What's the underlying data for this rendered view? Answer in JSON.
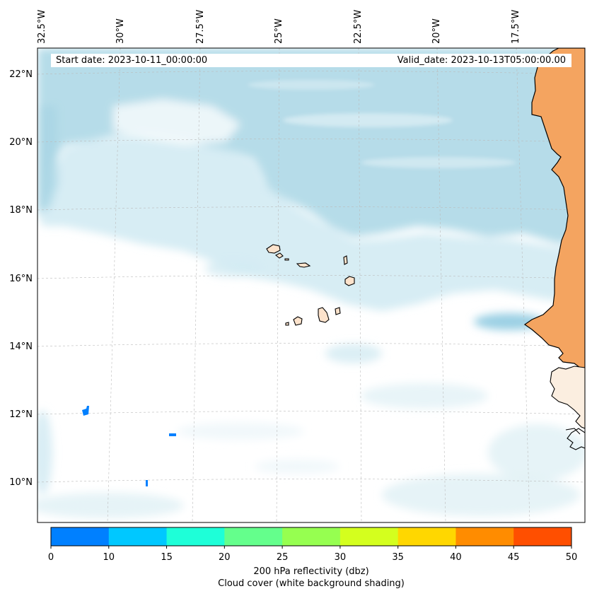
{
  "map": {
    "lon_labels": [
      "32.5°W",
      "30°W",
      "27.5°W",
      "25°W",
      "22.5°W",
      "20°W",
      "17.5°W"
    ],
    "lat_labels": [
      "22°N",
      "20°N",
      "18°N",
      "16°N",
      "14°N",
      "12°N",
      "10°N"
    ],
    "start_date": "Start date: 2023-10-11_00:00:00",
    "valid_date": "Valid_date: 2023-10-13T05:00:00.00",
    "colors": {
      "ocean": "#ffffff",
      "cloud": "#a9d6e5",
      "land_africa": "#f4a460",
      "islands": "#fde3cc",
      "coast": "#000000",
      "grid": "#bbbbbb"
    }
  },
  "colorbar": {
    "ticks": [
      "0",
      "10",
      "15",
      "20",
      "25",
      "30",
      "35",
      "40",
      "45",
      "50"
    ],
    "colors": [
      "#0080ff",
      "#00c8ff",
      "#1effd8",
      "#64ff8c",
      "#96ff50",
      "#d4ff1e",
      "#ffd700",
      "#ff8c00",
      "#ff4f00"
    ],
    "label_line1": "200 hPa reflectivity (dbz)",
    "label_line2": "Cloud cover (white background shading)"
  }
}
